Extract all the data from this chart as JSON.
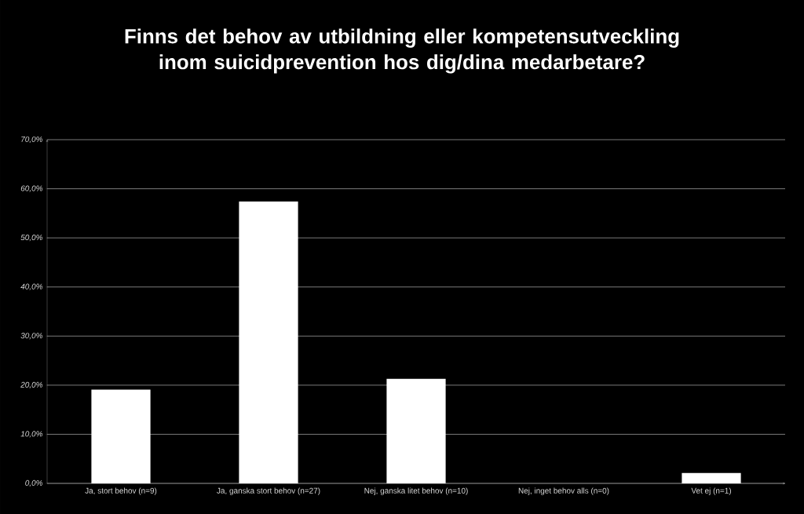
{
  "chart_data": {
    "type": "bar",
    "title": "Finns det behov av utbildning eller kompetensutveckling inom suicidprevention hos dig/dina medarbetare?",
    "categories": [
      "Ja, stort behov (n=9)",
      "Ja, ganska stort behov (n=27)",
      "Nej, ganska litet behov (n=10)",
      "Nej, inget behov alls (n=0)",
      "Vet ej (n=1)"
    ],
    "values": [
      19.1,
      57.4,
      21.3,
      0,
      2.1
    ],
    "color": "#ffffff",
    "ylim": [
      0,
      70
    ],
    "yticks": [
      {
        "value": 0,
        "label": "0,0%"
      },
      {
        "value": 10,
        "label": "10,0%"
      },
      {
        "value": 20,
        "label": "20,0%"
      },
      {
        "value": 30,
        "label": "30,0%"
      },
      {
        "value": 40,
        "label": "40,0%"
      },
      {
        "value": 50,
        "label": "50,0%"
      },
      {
        "value": 60,
        "label": "60,0%"
      },
      {
        "value": 70,
        "label": "70,0%"
      }
    ],
    "grid": "y"
  }
}
